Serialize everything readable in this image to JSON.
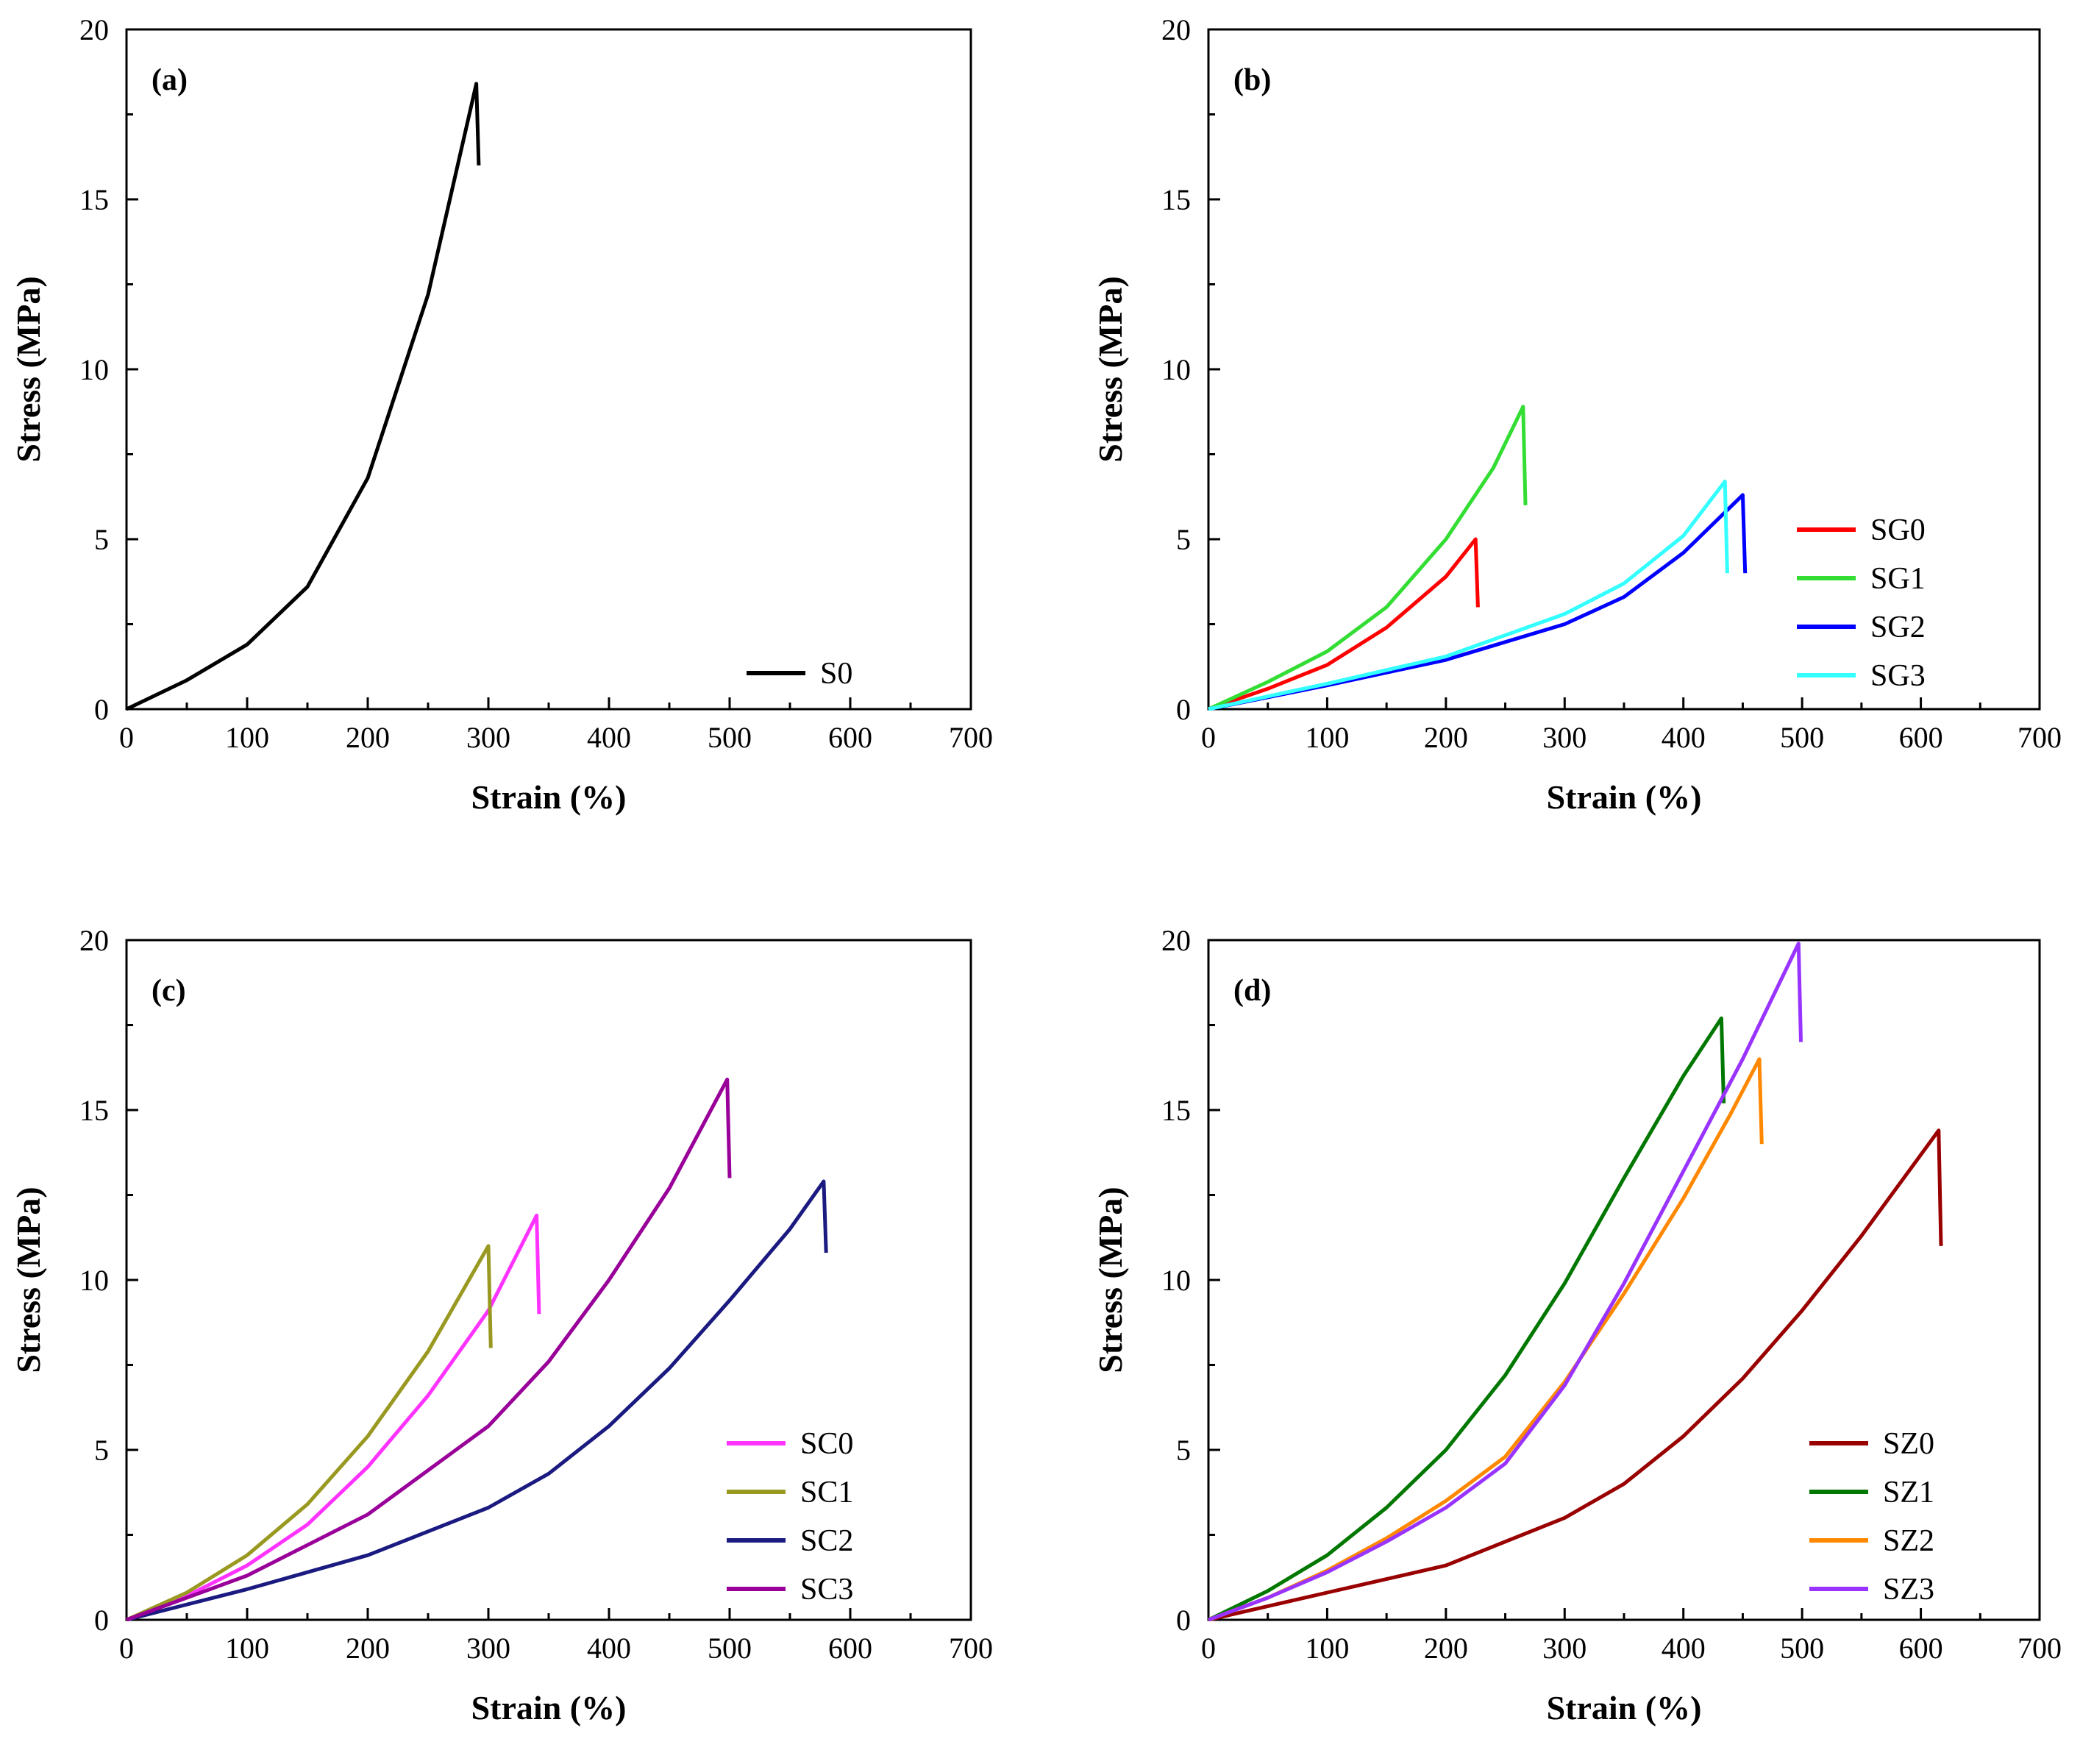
{
  "chart_data": [
    {
      "type": "line",
      "panel_label": "(a)",
      "xlabel": "Strain (%)",
      "ylabel": "Stress (MPa)",
      "xlim": [
        0,
        700
      ],
      "ylim": [
        0,
        20
      ],
      "xticks": [
        "0",
        "100",
        "200",
        "300",
        "400",
        "500",
        "600",
        "700"
      ],
      "yticks": [
        "0",
        "5",
        "10",
        "15",
        "20"
      ],
      "legend_position": "bottom-right",
      "series": [
        {
          "name": "S0",
          "color": "#000000",
          "x": [
            0,
            50,
            100,
            150,
            200,
            250,
            290,
            292
          ],
          "y": [
            0,
            0.85,
            1.9,
            3.6,
            6.8,
            12.2,
            18.4,
            16.0
          ]
        }
      ]
    },
    {
      "type": "line",
      "panel_label": "(b)",
      "xlabel": "Strain (%)",
      "ylabel": "Stress (MPa)",
      "xlim": [
        0,
        700
      ],
      "ylim": [
        0,
        20
      ],
      "xticks": [
        "0",
        "100",
        "200",
        "300",
        "400",
        "500",
        "600",
        "700"
      ],
      "yticks": [
        "0",
        "5",
        "10",
        "15",
        "20"
      ],
      "legend_position": "bottom-right",
      "series": [
        {
          "name": "SG0",
          "color": "#ff0000",
          "x": [
            0,
            50,
            100,
            150,
            200,
            225,
            227
          ],
          "y": [
            0,
            0.6,
            1.3,
            2.4,
            3.9,
            5.0,
            3.0
          ]
        },
        {
          "name": "SG1",
          "color": "#33dd33",
          "x": [
            0,
            50,
            100,
            150,
            200,
            240,
            265,
            267
          ],
          "y": [
            0,
            0.8,
            1.7,
            3.0,
            5.0,
            7.1,
            8.9,
            6.0
          ]
        },
        {
          "name": "SG2",
          "color": "#0000ff",
          "x": [
            0,
            100,
            200,
            300,
            350,
            400,
            450,
            452
          ],
          "y": [
            0,
            0.7,
            1.45,
            2.5,
            3.3,
            4.6,
            6.3,
            4.0
          ]
        },
        {
          "name": "SG3",
          "color": "#33ffff",
          "x": [
            0,
            100,
            200,
            300,
            350,
            400,
            435,
            437
          ],
          "y": [
            0,
            0.75,
            1.55,
            2.8,
            3.7,
            5.1,
            6.7,
            4.0
          ]
        }
      ]
    },
    {
      "type": "line",
      "panel_label": "(c)",
      "xlabel": "Strain (%)",
      "ylabel": "Stress (MPa)",
      "xlim": [
        0,
        700
      ],
      "ylim": [
        0,
        20
      ],
      "xticks": [
        "0",
        "100",
        "200",
        "300",
        "400",
        "500",
        "600",
        "700"
      ],
      "yticks": [
        "0",
        "5",
        "10",
        "15",
        "20"
      ],
      "legend_position": "bottom-right",
      "series": [
        {
          "name": "SC0",
          "color": "#ff33ff",
          "x": [
            0,
            50,
            100,
            150,
            200,
            250,
            300,
            340,
            342
          ],
          "y": [
            0,
            0.7,
            1.6,
            2.8,
            4.5,
            6.6,
            9.1,
            11.9,
            9.0
          ]
        },
        {
          "name": "SC1",
          "color": "#999922",
          "x": [
            0,
            50,
            100,
            150,
            200,
            250,
            300,
            302
          ],
          "y": [
            0,
            0.8,
            1.9,
            3.4,
            5.4,
            7.9,
            11.0,
            8.0
          ]
        },
        {
          "name": "SC2",
          "color": "#1a1a80",
          "x": [
            0,
            100,
            200,
            300,
            350,
            400,
            450,
            500,
            550,
            578,
            580
          ],
          "y": [
            0,
            0.9,
            1.9,
            3.3,
            4.3,
            5.7,
            7.4,
            9.4,
            11.5,
            12.9,
            10.8
          ]
        },
        {
          "name": "SC3",
          "color": "#990099",
          "x": [
            0,
            100,
            200,
            300,
            350,
            400,
            450,
            498,
            500
          ],
          "y": [
            0,
            1.3,
            3.1,
            5.7,
            7.6,
            10.0,
            12.7,
            15.9,
            13.0
          ]
        }
      ]
    },
    {
      "type": "line",
      "panel_label": "(d)",
      "xlabel": "Strain (%)",
      "ylabel": "Stress (MPa)",
      "xlim": [
        0,
        700
      ],
      "ylim": [
        0,
        20
      ],
      "xticks": [
        "0",
        "100",
        "200",
        "300",
        "400",
        "500",
        "600",
        "700"
      ],
      "yticks": [
        "0",
        "5",
        "10",
        "15",
        "20"
      ],
      "legend_position": "bottom-right",
      "series": [
        {
          "name": "SZ0",
          "color": "#990000",
          "x": [
            0,
            100,
            200,
            300,
            350,
            400,
            450,
            500,
            550,
            615,
            617
          ],
          "y": [
            0,
            0.8,
            1.6,
            3.0,
            4.0,
            5.4,
            7.1,
            9.1,
            11.3,
            14.4,
            11.0
          ]
        },
        {
          "name": "SZ1",
          "color": "#007700",
          "x": [
            0,
            50,
            100,
            150,
            200,
            250,
            300,
            350,
            400,
            432,
            434
          ],
          "y": [
            0,
            0.85,
            1.9,
            3.3,
            5.0,
            7.2,
            9.9,
            13.0,
            16.0,
            17.7,
            15.2
          ]
        },
        {
          "name": "SZ2",
          "color": "#ff8800",
          "x": [
            0,
            50,
            100,
            150,
            200,
            250,
            300,
            350,
            400,
            440,
            464,
            466
          ],
          "y": [
            0,
            0.65,
            1.45,
            2.4,
            3.5,
            4.8,
            7.0,
            9.6,
            12.4,
            14.9,
            16.5,
            14.0
          ]
        },
        {
          "name": "SZ3",
          "color": "#9933ff",
          "x": [
            0,
            50,
            100,
            150,
            200,
            250,
            300,
            350,
            400,
            450,
            497,
            499
          ],
          "y": [
            0,
            0.65,
            1.4,
            2.3,
            3.3,
            4.6,
            6.9,
            9.9,
            13.2,
            16.5,
            19.9,
            17.0
          ]
        }
      ]
    }
  ]
}
